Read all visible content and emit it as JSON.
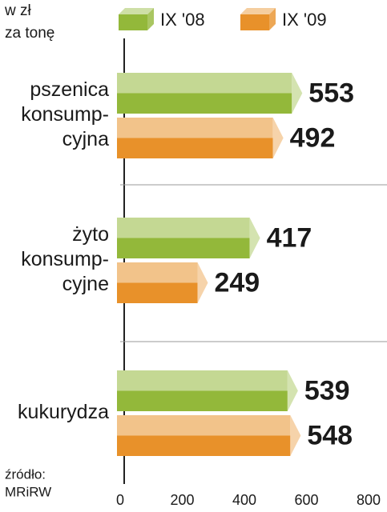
{
  "chart_data": {
    "type": "bar",
    "orientation": "horizontal",
    "ylabel": [
      "w zł",
      "za tonę"
    ],
    "categories": [
      [
        "pszenica",
        "konsump-",
        "cyjna"
      ],
      [
        "żyto",
        "konsump-",
        "cyjne"
      ],
      [
        "kukurydza"
      ]
    ],
    "series": [
      {
        "name": "IX '08",
        "color": "#93b83a",
        "values": [
          553,
          417,
          539
        ]
      },
      {
        "name": "IX '09",
        "color": "#e8912a",
        "values": [
          492,
          249,
          548
        ]
      }
    ],
    "xlim": [
      0,
      800
    ],
    "xticks": [
      0,
      200,
      400,
      600,
      800
    ],
    "source": [
      "źródło:",
      "MRiRW"
    ]
  }
}
